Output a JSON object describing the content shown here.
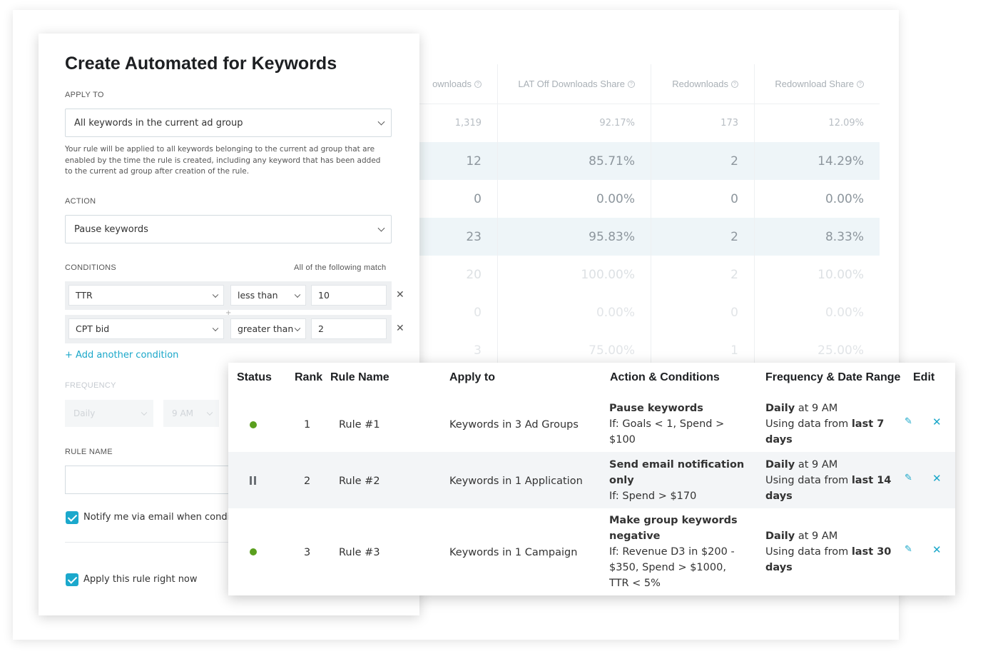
{
  "background_table": {
    "headers": [
      "ownloads",
      "LAT Off Downloads Share",
      "Redownloads",
      "Redownload Share"
    ],
    "rows": [
      [
        "1,319",
        "92.17%",
        "173",
        "12.09%"
      ],
      [
        "12",
        "85.71%",
        "2",
        "14.29%"
      ],
      [
        "0",
        "0.00%",
        "0",
        "0.00%"
      ],
      [
        "23",
        "95.83%",
        "2",
        "8.33%"
      ],
      [
        "20",
        "100.00%",
        "2",
        "10.00%"
      ],
      [
        "0",
        "0.00%",
        "0",
        "0.00%"
      ],
      [
        "3",
        "75.00%",
        "1",
        "25.00%"
      ]
    ]
  },
  "panel": {
    "title": "Create Automated for Keywords",
    "apply_to_label": "APPLY TO",
    "apply_to_value": "All keywords in the current ad group",
    "help_text": "Your rule will be applied to all keywords belonging to the current ad group that are enabled by the time the rule is created, including any keyword that has been added to the current ad group after creation of the rule.",
    "action_label": "ACTION",
    "action_value": "Pause keywords",
    "conditions_label": "CONDITIONS",
    "conditions_match": "All of the following match",
    "conditions": [
      {
        "metric": "TTR",
        "operator": "less than",
        "value": "10"
      },
      {
        "metric": "CPT bid",
        "operator": "greater than",
        "value": "2"
      }
    ],
    "add_condition": "+ Add another condition",
    "frequency_label": "FREQUENCY",
    "frequency_value": "Daily",
    "time_value": "9 AM",
    "rule_name_label": "RULE NAME",
    "notify_label": "Notify me via email when conditi",
    "apply_now_label": "Apply this rule right now"
  },
  "rules": {
    "headers": {
      "status": "Status",
      "rank": "Rank",
      "name": "Rule Name",
      "apply": "Apply to",
      "action": "Action & Conditions",
      "freq": "Frequency & Date Range",
      "edit": "Edit"
    },
    "rows": [
      {
        "status": "active",
        "rank": "1",
        "name": "Rule #1",
        "apply": "Keywords in 3 Ad Groups",
        "action_lines": [
          "Pause keywords"
        ],
        "condition_lines": [
          "If: Goals < 1, Spend >",
          "$100"
        ],
        "freq_bold": "Daily",
        "freq_rest": " at 9 AM",
        "range_prefix": "Using data from ",
        "range_bold": "last 7",
        "range_end": "days"
      },
      {
        "status": "paused",
        "rank": "2",
        "name": "Rule #2",
        "apply": "Keywords in 1 Application",
        "action_lines": [
          "Send email notification",
          "only"
        ],
        "condition_lines": [
          "If: Spend > $170"
        ],
        "freq_bold": "Daily",
        "freq_rest": " at 9 AM",
        "range_prefix": "Using data from ",
        "range_bold": "last 14",
        "range_end": "days"
      },
      {
        "status": "active",
        "rank": "3",
        "name": "Rule #3",
        "apply": "Keywords in 1 Campaign",
        "action_lines": [
          "Make group keywords",
          "negative"
        ],
        "condition_lines": [
          "If: Revenue D3 in $200 -",
          "$350, Spend > $1000,",
          "TTR < 5%"
        ],
        "freq_bold": "Daily",
        "freq_rest": " at 9 AM",
        "range_prefix": "Using data from ",
        "range_bold": "last 30",
        "range_end": "days"
      }
    ]
  },
  "colors": {
    "accent": "#1aa7c9",
    "active_status": "#5a9f1e",
    "paused_status": "#6b7075"
  },
  "icons": {
    "edit": "pencil-icon",
    "delete": "close-icon",
    "dropdown": "chevron-down-icon",
    "checkbox": "checkmark-icon"
  }
}
